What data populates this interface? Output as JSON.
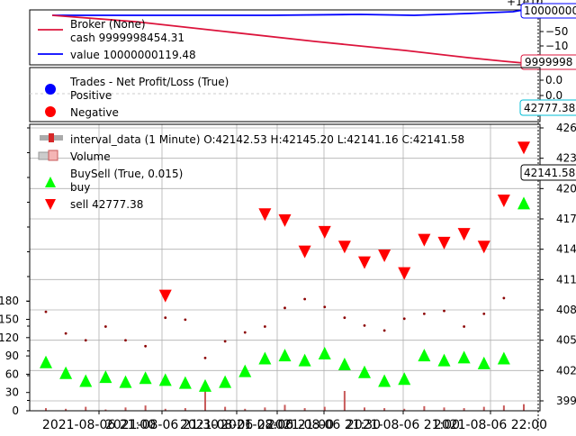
{
  "colors": {
    "broker": "#dc143c",
    "value": "#0000ff",
    "buy": "#00ff00",
    "sell": "#ff0000",
    "price": "#8b0000",
    "volume": "#c85a5a",
    "grid": "#b0b0b0",
    "trades_axis": "#00bcd4"
  },
  "broker_panel": {
    "offset_label": "+1e10",
    "legend_title": "Broker (None)",
    "cash_label": "cash 9999998454.31",
    "value_label": "value 10000000119.48",
    "value_tag": "10000000",
    "cash_tag": "9999998",
    "ticks": [
      "−50",
      "−10"
    ]
  },
  "trades_panel": {
    "legend_title": "Trades - Net Profit/Loss (True)",
    "positive_label": "Positive",
    "negative_label": "Negative",
    "ticks": [
      "0.0",
      "0.0"
    ],
    "tag": "42777.38"
  },
  "main_panel": {
    "ohlc_label": "interval_data (1 Minute) O:42142.53 H:42145.20 L:42141.16 C:42141.58",
    "volume_label": "Volume",
    "buysell_label": "BuySell (True, 0.015)",
    "buy_label": "buy",
    "sell_label": "sell 42777.38",
    "price_tag": "42141.58",
    "price_ticks": [
      "426",
      "423",
      "420",
      "417",
      "414",
      "411",
      "408",
      "405",
      "402",
      "399"
    ],
    "volume_ticks": [
      "0",
      "30",
      "60",
      "90",
      "120",
      "150",
      "180"
    ],
    "x_ticks": [
      "2021-08-06 21:00",
      "2021-08-06 21:30",
      "2021-08-06 22:00",
      "2021-08-06 21:00",
      "2021-08-06 21:30",
      "2021-08-06 21:00",
      "2021-08-06 22:00"
    ]
  },
  "chart_data": {
    "type": "scatter",
    "x": [
      0,
      5,
      10,
      15,
      20,
      25,
      30,
      35,
      40,
      45,
      50,
      55,
      60,
      65,
      70,
      75,
      80,
      85,
      90,
      95,
      100,
      105,
      110,
      115,
      120
    ],
    "series": [
      {
        "name": "interval_data (1 Minute)",
        "values": [
          40780,
          40560,
          40490,
          40630,
          40490,
          40430,
          40720,
          40700,
          40310,
          40480,
          40570,
          40630,
          40820,
          40910,
          40830,
          40720,
          40640,
          40590,
          40710,
          40760,
          40790,
          40630,
          40760,
          40920,
          42141
        ]
      },
      {
        "name": "Volume",
        "values": [
          4,
          3,
          6,
          2,
          5,
          8,
          3,
          4,
          40,
          6,
          3,
          5,
          9,
          4,
          6,
          30,
          5,
          4,
          3,
          7,
          5,
          4,
          6,
          8,
          10
        ]
      },
      {
        "name": "buy",
        "values": [
          40260,
          40150,
          40070,
          40110,
          40060,
          40100,
          40080,
          40050,
          40020,
          40060,
          40170,
          40300,
          40330,
          40280,
          40350,
          40240,
          40160,
          40070,
          40090,
          40330,
          40280,
          40310,
          40250,
          40300,
          41880
        ]
      },
      {
        "name": "sell",
        "values": [
          0,
          0,
          0,
          0,
          0,
          0,
          40950,
          0,
          0,
          0,
          0,
          41780,
          41720,
          41400,
          41600,
          41450,
          41290,
          41360,
          41180,
          41520,
          41490,
          41580,
          41450,
          41920,
          42460
        ]
      }
    ],
    "ylim": [
      39900,
      42600
    ],
    "y2lim": [
      0,
      180
    ]
  }
}
